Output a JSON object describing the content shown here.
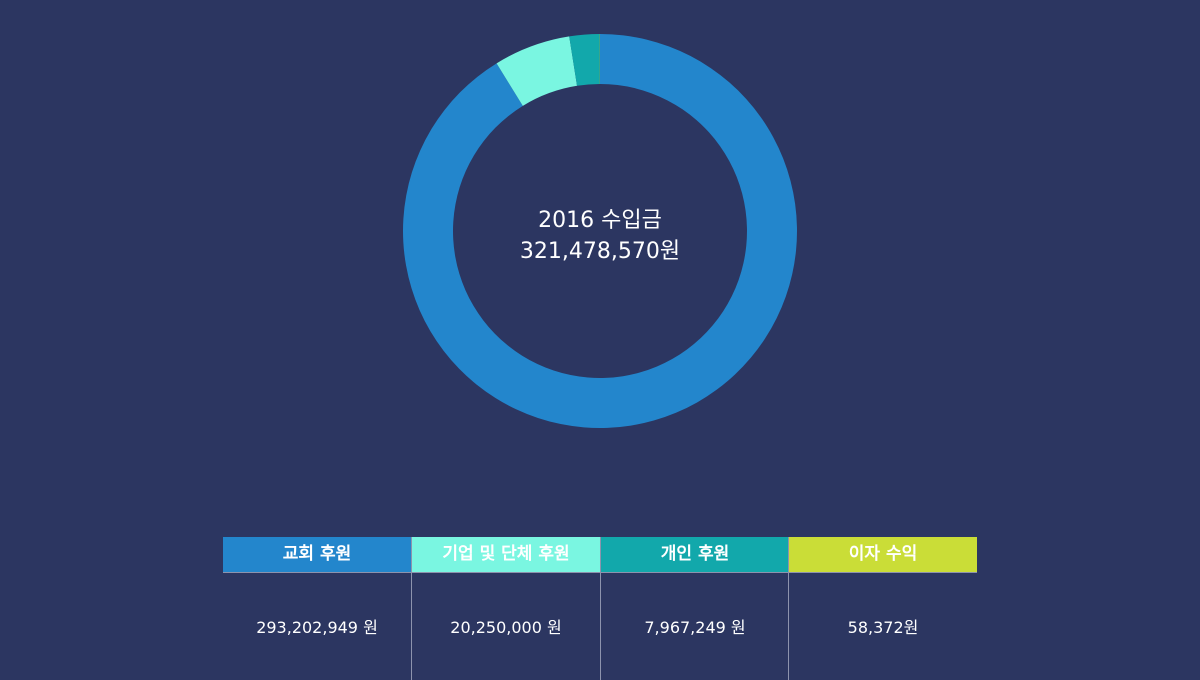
{
  "chart_data": {
    "type": "pie",
    "title": "2016 수입금",
    "total_label": "321,478,570원",
    "total": 321478570,
    "categories": [
      "교회 후원",
      "기업 및 단체 후원",
      "개인 후원",
      "이자 수익"
    ],
    "values": [
      293202949,
      20250000,
      7967249,
      58372
    ],
    "value_labels": [
      "293,202,949 원",
      "20,250,000 원",
      "7,967,249 원",
      "58,372원"
    ],
    "colors": [
      "#2386cc",
      "#7af6e1",
      "#12a8ab",
      "#cadd37"
    ],
    "legend_placement": "bottom"
  }
}
